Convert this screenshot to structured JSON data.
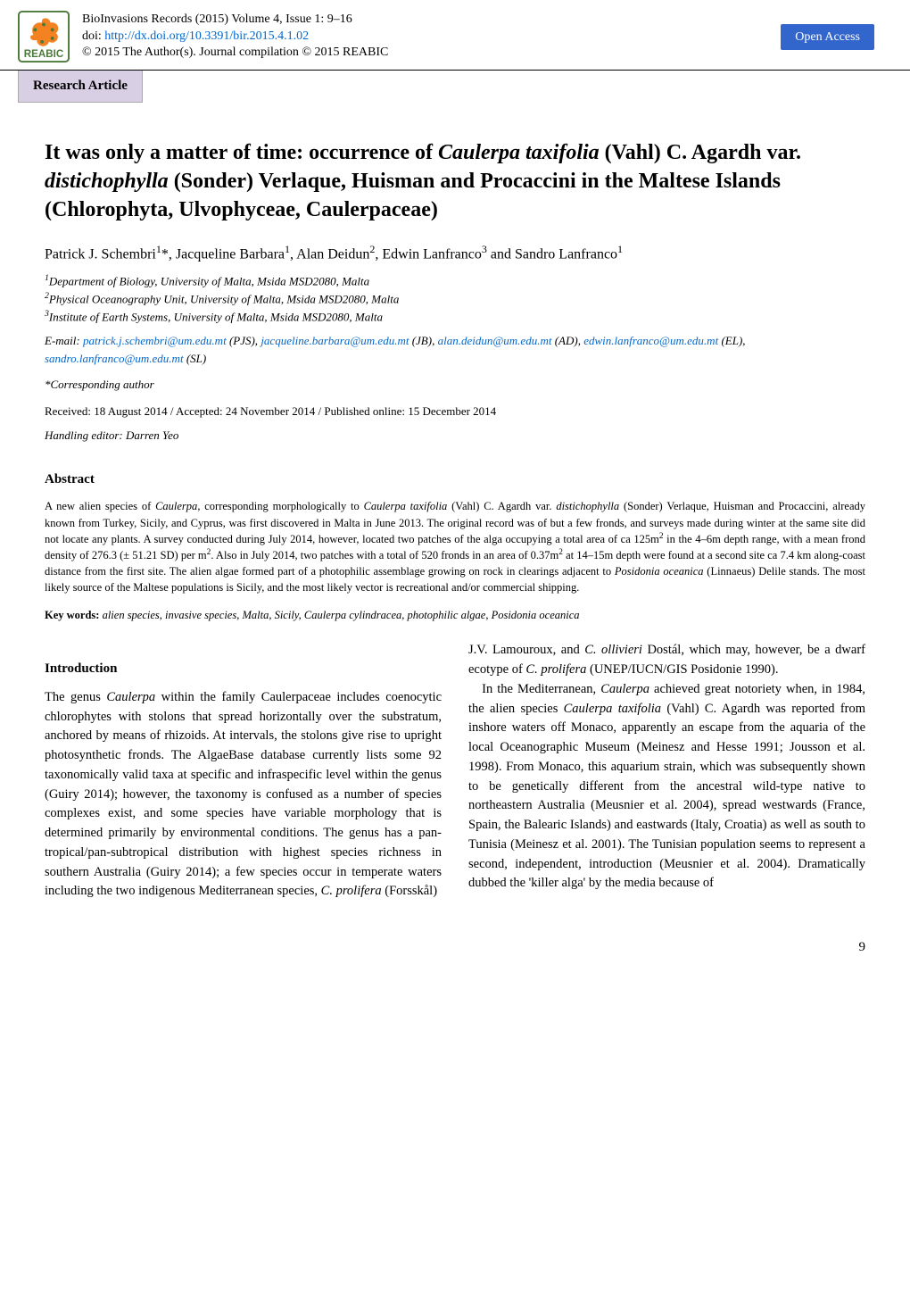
{
  "header": {
    "journal_line": "BioInvasions Records (2015) Volume 4, Issue 1: 9–16",
    "doi_prefix": "doi:  ",
    "doi_link": "http://dx.doi.org/10.3391/bir.2015.4.1.02",
    "copyright": "© 2015 The Author(s). Journal compilation © 2015 REABIC",
    "open_access": "Open Access",
    "logo_text": "REABIC"
  },
  "section_tab": "Research Article",
  "title_html": "It was only a matter of time: occurrence of <em>Caulerpa taxifolia</em> (Vahl) C. Agardh var. <em>distichophylla</em> (Sonder) Verlaque, Huisman and Procaccini in the Maltese Islands (Chlorophyta, Ulvophyceae, Caulerpaceae)",
  "authors_html": "Patrick J. Schembri<sup>1</sup>*, Jacqueline Barbara<sup>1</sup>, Alan Deidun<sup>2</sup>, Edwin Lanfranco<sup>3</sup> and Sandro Lanfranco<sup>1</sup>",
  "affiliations": [
    "<sup>1</sup>Department of Biology, University of Malta, Msida MSD2080, Malta",
    "<sup>2</sup>Physical Oceanography Unit, University of Malta, Msida MSD2080, Malta",
    "<sup>3</sup>Institute of Earth Systems, University of Malta, Msida MSD2080, Malta"
  ],
  "emails_prefix": "E-mail: ",
  "emails": [
    {
      "addr": "patrick.j.schembri@um.edu.mt",
      "suffix": " (PJS), "
    },
    {
      "addr": "jacqueline.barbara@um.edu.mt",
      "suffix": " (JB), "
    },
    {
      "addr": "alan.deidun@um.edu.mt",
      "suffix": " (AD), "
    },
    {
      "addr": "edwin.lanfranco@um.edu.mt",
      "suffix": " (EL), "
    },
    {
      "addr": "sandro.lanfranco@um.edu.mt",
      "suffix": " (SL)"
    }
  ],
  "corresponding": "*Corresponding author",
  "dates": "Received: 18 August 2014 / Accepted: 24 November 2014 / Published online: 15 December 2014",
  "handling_editor": "Handling editor: Darren Yeo",
  "abstract_head": "Abstract",
  "abstract_html": "A new alien species of <em>Caulerpa</em>, corresponding morphologically to <em>Caulerpa taxifolia</em> (Vahl) C. Agardh var. <em>distichophylla</em> (Sonder) Verlaque, Huisman and Procaccini, already known from Turkey, Sicily, and Cyprus, was first discovered in Malta in June 2013. The original record was of but a few fronds, and surveys made during winter at the same site did not locate any plants. A survey conducted during July 2014, however, located two patches of the alga occupying a total area of ca 125m<sup>2</sup> in the 4–6m depth range, with a mean frond density of 276.3 (± 51.21 SD) per m<sup>2</sup>. Also in July 2014, two patches with a total of 520 fronds in an area of 0.37m<sup>2</sup> at 14–15m depth were found at a second site ca 7.4 km along-coast distance from the first site. The alien algae formed part of a photophilic assemblage growing on rock in clearings adjacent to <em>Posidonia oceanica</em> (Linnaeus) Delile stands. The most likely source of the Maltese populations is Sicily, and the most likely vector is recreational and/or commercial shipping.",
  "keywords_label": "Key words: ",
  "keywords_text": "alien species, invasive species, Malta, Sicily, Caulerpa cylindracea, photophilic algae, Posidonia oceanica",
  "intro_head": "Introduction",
  "col_left_html": "The genus <em>Caulerpa</em> within the family Caulerpaceae includes coenocytic chlorophytes with stolons that spread horizontally over the substratum, anchored by means of rhizoids. At intervals, the stolons give rise to upright photosynthetic fronds. The AlgaeBase database currently lists some 92 taxonomically valid taxa at specific and infraspecific level within the genus (Guiry 2014); however, the taxonomy is confused as a number of species complexes exist, and some species have variable morphology that is determined primarily by environmental conditions. The genus has a pan-tropical/pan-subtropical distribution with highest species richness in southern Australia (Guiry 2014); a few species occur in temperate waters including the two indigenous Mediterranean species, <em>C. prolifera</em> (Forsskål)",
  "col_right_html": "J.V. Lamouroux, and <em>C. ollivieri</em> Dostál, which may, however, be a dwarf ecotype of <em>C. prolifera</em> (UNEP/IUCN/GIS Posidonie 1990).<br>&nbsp;&nbsp;&nbsp;In the Mediterranean, <em>Caulerpa</em> achieved great notoriety when, in 1984, the alien species <em>Caulerpa taxifolia</em> (Vahl) C. Agardh was reported from inshore waters off Monaco, apparently an escape from the aquaria of the local Oceanographic Museum (Meinesz and Hesse 1991; Jousson et al. 1998). From Monaco, this aquarium strain, which was subsequently shown to be genetically different from the ancestral wild-type native to northeastern Australia (Meusnier et al. 2004), spread westwards (France, Spain, the Balearic Islands) and eastwards (Italy, Croatia) as well as south to Tunisia (Meinesz et al. 2001). The Tunisian population seems to represent a second, independent, introduction (Meusnier et al. 2004). Dramatically dubbed the 'killer alga' by the media because of",
  "page_number": "9",
  "colors": {
    "link": "#0066cc",
    "open_access_bg": "#3366cc",
    "section_tab_bg": "#d8cfe4",
    "logo_orange": "#f58220",
    "logo_green": "#4a7a3a"
  }
}
